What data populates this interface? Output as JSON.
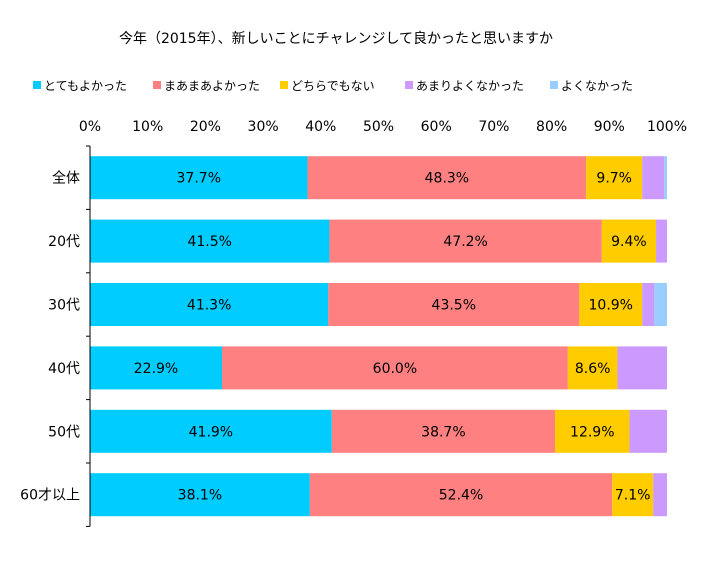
{
  "chart_data": {
    "type": "bar",
    "orientation": "horizontal",
    "stacked": "percent",
    "title": "今年（2015年）、新しいことにチャレンジして良かったと思いますか",
    "xlabel": "",
    "ylabel": "",
    "xlim": [
      0,
      100
    ],
    "x_ticks": [
      "0%",
      "10%",
      "20%",
      "30%",
      "40%",
      "50%",
      "60%",
      "70%",
      "80%",
      "90%",
      "100%"
    ],
    "x_tick_position": "top",
    "grid": false,
    "legend_position": "top",
    "categories": [
      "全体",
      "20代",
      "30代",
      "40代",
      "50代",
      "60才以上"
    ],
    "series": [
      {
        "name": "とてもよかった",
        "color": "#00ccff",
        "values": [
          37.7,
          41.5,
          41.3,
          22.9,
          41.9,
          38.1
        ],
        "labels": [
          "37.7%",
          "41.5%",
          "41.3%",
          "22.9%",
          "41.9%",
          "38.1%"
        ]
      },
      {
        "name": "まあまあよかった",
        "color": "#ff8080",
        "values": [
          48.3,
          47.2,
          43.5,
          60.0,
          38.7,
          52.4
        ],
        "labels": [
          "48.3%",
          "47.2%",
          "43.5%",
          "60.0%",
          "38.7%",
          "52.4%"
        ]
      },
      {
        "name": "どちらでもない",
        "color": "#ffcc00",
        "values": [
          9.7,
          9.4,
          10.9,
          8.6,
          12.9,
          7.1
        ],
        "labels": [
          "9.7%",
          "9.4%",
          "10.9%",
          "8.6%",
          "12.9%",
          "7.1%"
        ]
      },
      {
        "name": "あまりよくなかった",
        "color": "#cc99ff",
        "values": [
          3.8,
          1.9,
          2.1,
          8.6,
          6.5,
          2.4
        ],
        "labels": [
          "",
          "",
          "",
          "",
          "",
          ""
        ]
      },
      {
        "name": "よくなかった",
        "color": "#99ccff",
        "values": [
          0.5,
          0.0,
          2.2,
          0.0,
          0.0,
          0.0
        ],
        "labels": [
          "",
          "",
          "",
          "",
          "",
          ""
        ]
      }
    ]
  }
}
